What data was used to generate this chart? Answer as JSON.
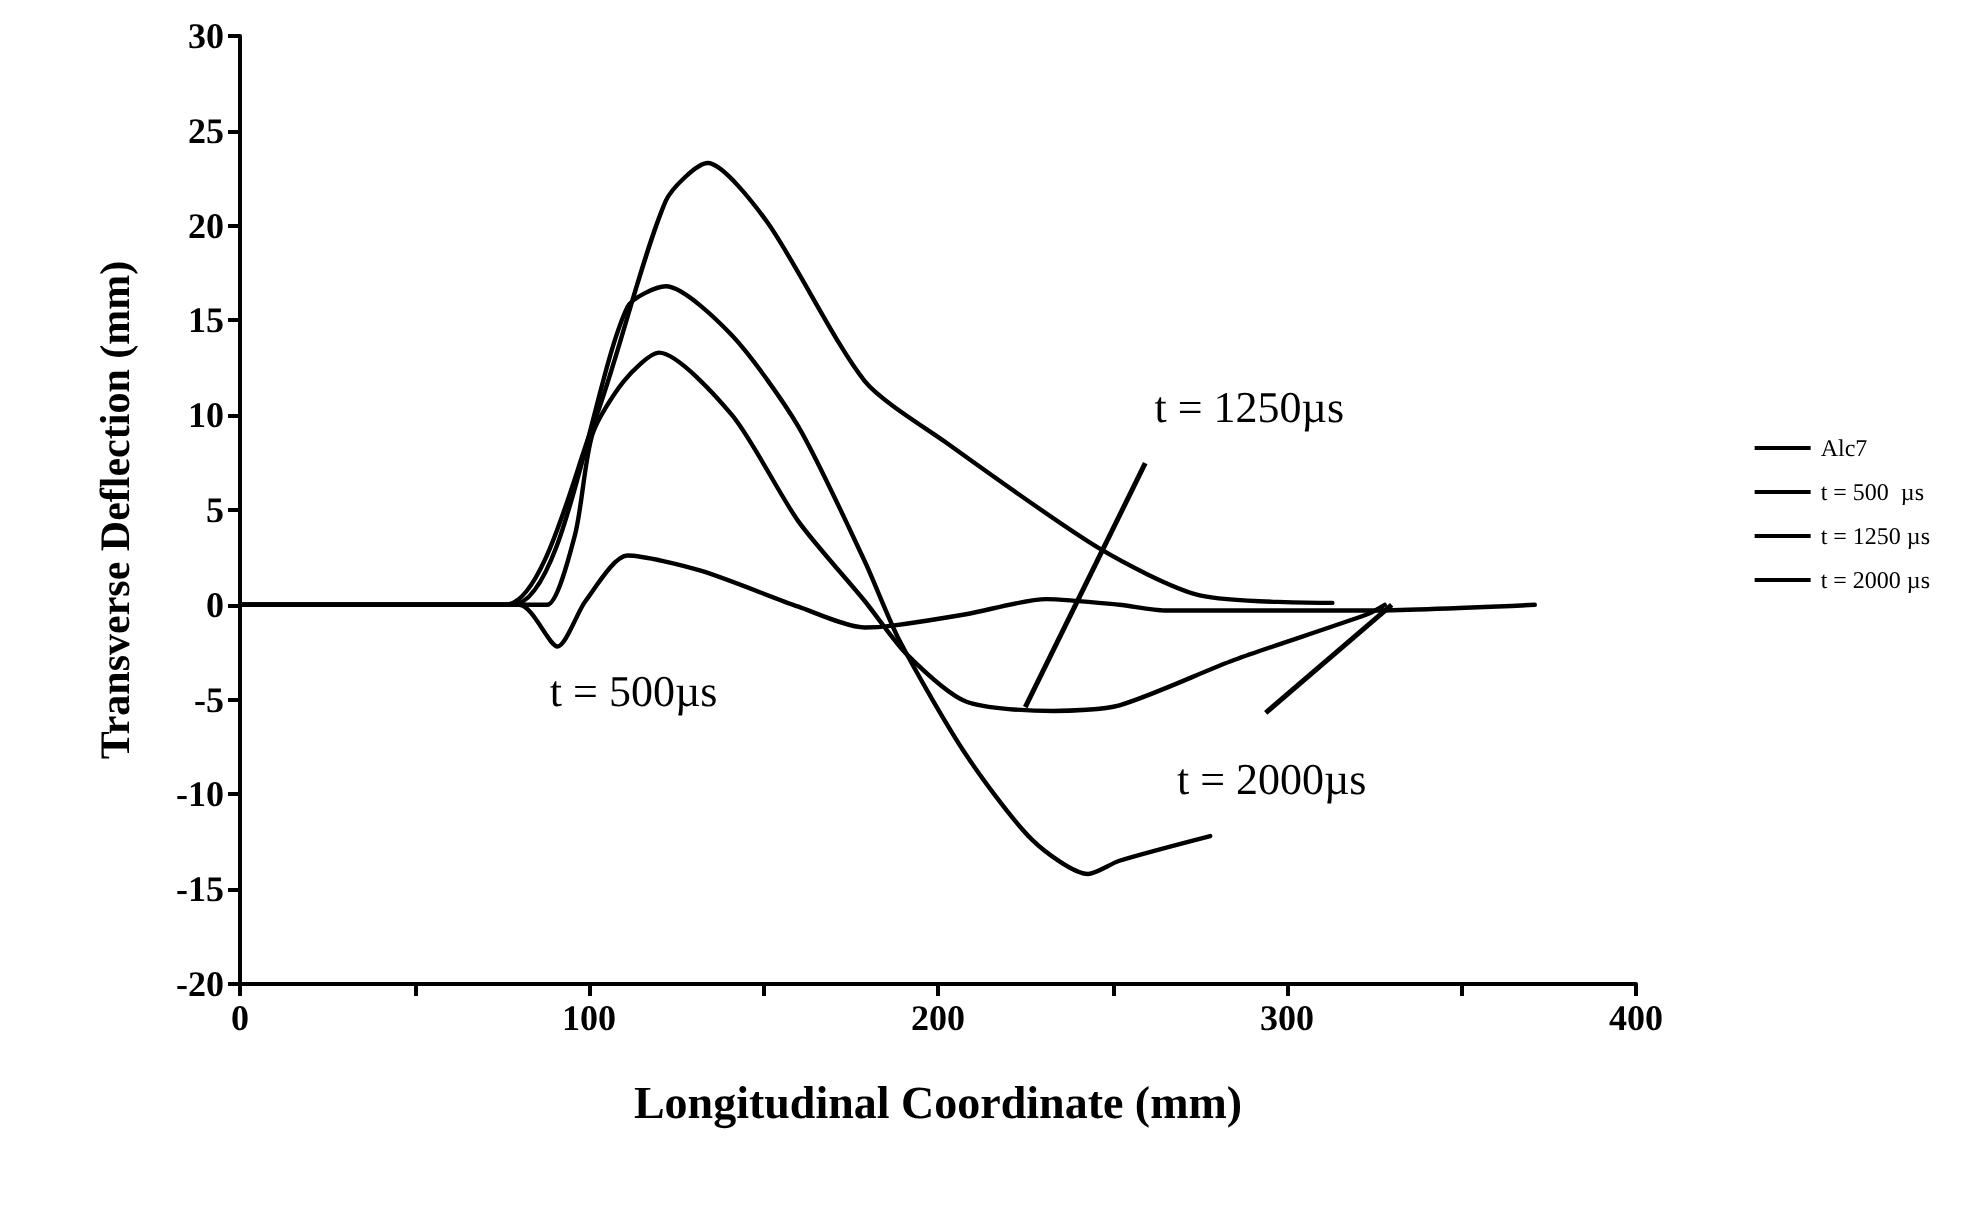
{
  "chart_data": {
    "type": "line",
    "xlabel": "Longitudinal Coordinate (mm)",
    "ylabel": "Transverse Deflection (mm)",
    "xlim": [
      0,
      400
    ],
    "xticks": [
      0,
      {
        "value": 50,
        "label": null
      },
      100,
      {
        "value": 150,
        "label": null
      },
      200,
      {
        "value": 250,
        "label": null
      },
      300,
      {
        "value": 350,
        "label": null
      },
      400
    ],
    "ylim": [
      -20,
      30
    ],
    "yticks": [
      -20,
      -15,
      -10,
      -5,
      0,
      5,
      10,
      15,
      20,
      25,
      30
    ],
    "grid": false,
    "legend": "right",
    "marker": "none",
    "line_style": "solid",
    "series": [
      {
        "name": "Alc7",
        "color": "#000000",
        "x": [
          0,
          76,
          101,
          122,
          134,
          151,
          179,
          202,
          246,
          275,
          313
        ],
        "values": [
          0,
          0,
          9.4,
          21.3,
          23.3,
          20.2,
          11.8,
          8.6,
          3,
          0.5,
          0.1
        ]
      },
      {
        "name": "t = 500  µs",
        "color": "#000000",
        "x": [
          0,
          80,
          91,
          99,
          111,
          132,
          160,
          179,
          187,
          208,
          231,
          252,
          265,
          323,
          371
        ],
        "values": [
          0,
          0,
          -2.2,
          0.2,
          2.6,
          1.8,
          -0.1,
          -1.2,
          -1.1,
          -0.5,
          0.3,
          0,
          -0.3,
          -0.3,
          0
        ]
      },
      {
        "name": "t = 1250 µs",
        "color": "#000000",
        "x": [
          0,
          80,
          88,
          96,
          101,
          110,
          120,
          141,
          160,
          179,
          191,
          208,
          233,
          252,
          285,
          323,
          328
        ],
        "values": [
          0,
          0,
          0,
          3.7,
          9,
          11.8,
          13.3,
          10,
          4.4,
          0.2,
          -2.6,
          -5.1,
          -5.6,
          -5.3,
          -2.9,
          -0.5,
          0
        ]
      },
      {
        "name": "t = 2000 µs",
        "color": "#000000",
        "x": [
          0,
          78,
          111,
          122,
          141,
          160,
          179,
          189,
          208,
          227,
          243,
          252,
          278
        ],
        "values": [
          0,
          0,
          15.7,
          16.8,
          14.2,
          9.4,
          2.3,
          -1.9,
          -7.9,
          -12.4,
          -14.2,
          -13.5,
          -12.2
        ]
      }
    ],
    "annotations": [
      {
        "text": "t = 500µs",
        "x": 91,
        "y": -2.2
      },
      {
        "text": "t = 1250µs",
        "x": 225,
        "y": -5.4
      },
      {
        "text": "t = 2000µs",
        "x": 330,
        "y": 0
      }
    ]
  }
}
